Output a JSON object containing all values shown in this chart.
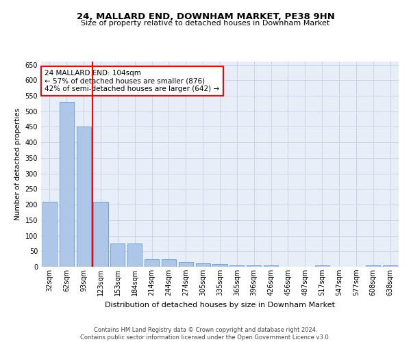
{
  "title": "24, MALLARD END, DOWNHAM MARKET, PE38 9HN",
  "subtitle": "Size of property relative to detached houses in Downham Market",
  "xlabel": "Distribution of detached houses by size in Downham Market",
  "ylabel": "Number of detached properties",
  "categories": [
    "32sqm",
    "62sqm",
    "93sqm",
    "123sqm",
    "153sqm",
    "184sqm",
    "214sqm",
    "244sqm",
    "274sqm",
    "305sqm",
    "335sqm",
    "365sqm",
    "396sqm",
    "426sqm",
    "456sqm",
    "487sqm",
    "517sqm",
    "547sqm",
    "577sqm",
    "608sqm",
    "638sqm"
  ],
  "values": [
    208,
    530,
    450,
    210,
    75,
    75,
    25,
    25,
    15,
    12,
    8,
    5,
    5,
    5,
    0,
    0,
    5,
    0,
    0,
    5,
    5
  ],
  "bar_color": "#aec6e8",
  "bar_edge_color": "#5b9bd5",
  "grid_color": "#c8d4e8",
  "background_color": "#e8eef8",
  "vline_color": "red",
  "annotation_text": "24 MALLARD END: 104sqm\n← 57% of detached houses are smaller (876)\n42% of semi-detached houses are larger (642) →",
  "annotation_box_color": "white",
  "annotation_box_edge": "red",
  "footer_line1": "Contains HM Land Registry data © Crown copyright and database right 2024.",
  "footer_line2": "Contains public sector information licensed under the Open Government Licence v3.0.",
  "ylim": [
    0,
    660
  ],
  "yticks": [
    0,
    50,
    100,
    150,
    200,
    250,
    300,
    350,
    400,
    450,
    500,
    550,
    600,
    650
  ],
  "title_fontsize": 9.5,
  "subtitle_fontsize": 8,
  "ylabel_fontsize": 7.5,
  "xlabel_fontsize": 8,
  "tick_fontsize": 7,
  "annotation_fontsize": 7.5,
  "footer_fontsize": 6
}
